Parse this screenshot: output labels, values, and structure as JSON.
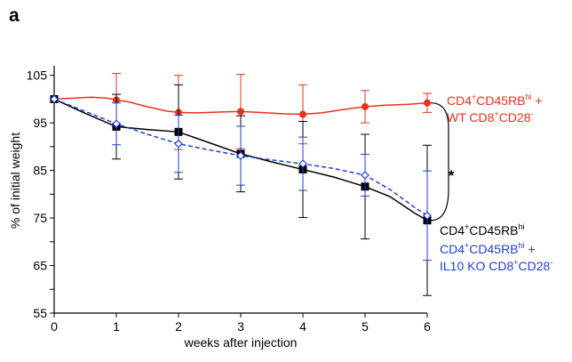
{
  "panel_label": "a",
  "colors": {
    "red": "#e8321e",
    "black": "#000000",
    "blue": "#1f3fd8"
  },
  "chart_data": {
    "type": "line",
    "xlabel": "weeks after injection",
    "ylabel": "% of initial weight",
    "x": [
      0,
      1,
      2,
      3,
      4,
      5,
      6
    ],
    "xlim": [
      0,
      6
    ],
    "ylim": [
      55,
      107
    ],
    "xticks": [
      "0",
      "1",
      "2",
      "3",
      "4",
      "5",
      "6"
    ],
    "yticks": [
      "55",
      "65",
      "75",
      "85",
      "95",
      "105"
    ],
    "significance": "*",
    "series": [
      {
        "key": "red",
        "label_lines": [
          [
            {
              "t": "CD4"
            },
            {
              "t": "+",
              "sup": true
            },
            {
              "t": "CD45RB"
            },
            {
              "t": "hi",
              "sup": true
            },
            {
              "t": " +"
            }
          ],
          [
            {
              "t": "WT CD8"
            },
            {
              "t": "+",
              "sup": true
            },
            {
              "t": "CD28"
            },
            {
              "t": "-",
              "sup": true
            }
          ]
        ],
        "color": "#e8321e",
        "marker": "circle",
        "dashed": false,
        "values": [
          100,
          99.8,
          97.2,
          97.4,
          96.8,
          98.4,
          99.2
        ],
        "err": [
          0,
          5.6,
          7.8,
          7.8,
          6.2,
          3.4,
          2.0
        ],
        "curve": [
          [
            0,
            100
          ],
          [
            0.3,
            100.2
          ],
          [
            0.6,
            100.4
          ],
          [
            0.85,
            100.2
          ],
          [
            1,
            99.8
          ],
          [
            1.2,
            99.4
          ],
          [
            1.5,
            98.4
          ],
          [
            1.8,
            97.5
          ],
          [
            2,
            97.2
          ],
          [
            2.3,
            97.1
          ],
          [
            2.7,
            97.3
          ],
          [
            3,
            97.4
          ],
          [
            3.3,
            97.2
          ],
          [
            3.7,
            96.9
          ],
          [
            4,
            96.8
          ],
          [
            4.3,
            97.1
          ],
          [
            4.7,
            97.9
          ],
          [
            5,
            98.4
          ],
          [
            5.3,
            98.7
          ],
          [
            5.7,
            98.9
          ],
          [
            6,
            99.2
          ]
        ]
      },
      {
        "key": "black",
        "label_lines": [
          [
            {
              "t": "CD4"
            },
            {
              "t": "+",
              "sup": true
            },
            {
              "t": "CD45RB"
            },
            {
              "t": "hi",
              "sup": true
            }
          ]
        ],
        "color": "#000000",
        "marker": "square",
        "dashed": false,
        "values": [
          100,
          94.2,
          93.1,
          88.5,
          85.2,
          81.6,
          74.5
        ],
        "err": [
          0,
          6.8,
          9.9,
          8.0,
          10.1,
          11.0,
          15.8
        ],
        "curve": [
          [
            0,
            100
          ],
          [
            0.5,
            97.0
          ],
          [
            1,
            94.2
          ],
          [
            1.5,
            93.6
          ],
          [
            2,
            93.1
          ],
          [
            2.5,
            90.8
          ],
          [
            3,
            88.5
          ],
          [
            3.5,
            86.8
          ],
          [
            4,
            85.2
          ],
          [
            4.5,
            83.6
          ],
          [
            5,
            81.6
          ],
          [
            5.4,
            79.5
          ],
          [
            5.8,
            76.0
          ],
          [
            6,
            74.5
          ]
        ]
      },
      {
        "key": "blue",
        "label_lines": [
          [
            {
              "t": "CD4"
            },
            {
              "t": "+",
              "sup": true
            },
            {
              "t": "CD45RB"
            },
            {
              "t": "hi",
              "sup": true
            },
            {
              "t": " +"
            }
          ],
          [
            {
              "t": "IL10 KO CD8"
            },
            {
              "t": "+",
              "sup": true
            },
            {
              "t": "CD28"
            },
            {
              "t": "-",
              "sup": true
            }
          ]
        ],
        "color": "#1f3fd8",
        "marker": "diamond",
        "dashed": true,
        "values": [
          100,
          94.8,
          90.6,
          88.1,
          86.4,
          84.0,
          75.5
        ],
        "err": [
          0,
          4.4,
          6.0,
          6.2,
          5.6,
          4.4,
          9.4
        ],
        "curve": [
          [
            0,
            100
          ],
          [
            0.5,
            97.4
          ],
          [
            1,
            94.8
          ],
          [
            1.5,
            92.6
          ],
          [
            2,
            90.6
          ],
          [
            2.5,
            89.3
          ],
          [
            3,
            88.1
          ],
          [
            3.5,
            87.2
          ],
          [
            4,
            86.4
          ],
          [
            4.5,
            85.4
          ],
          [
            5,
            84.0
          ],
          [
            5.4,
            81.0
          ],
          [
            5.8,
            77.2
          ],
          [
            6,
            75.5
          ]
        ]
      }
    ]
  }
}
